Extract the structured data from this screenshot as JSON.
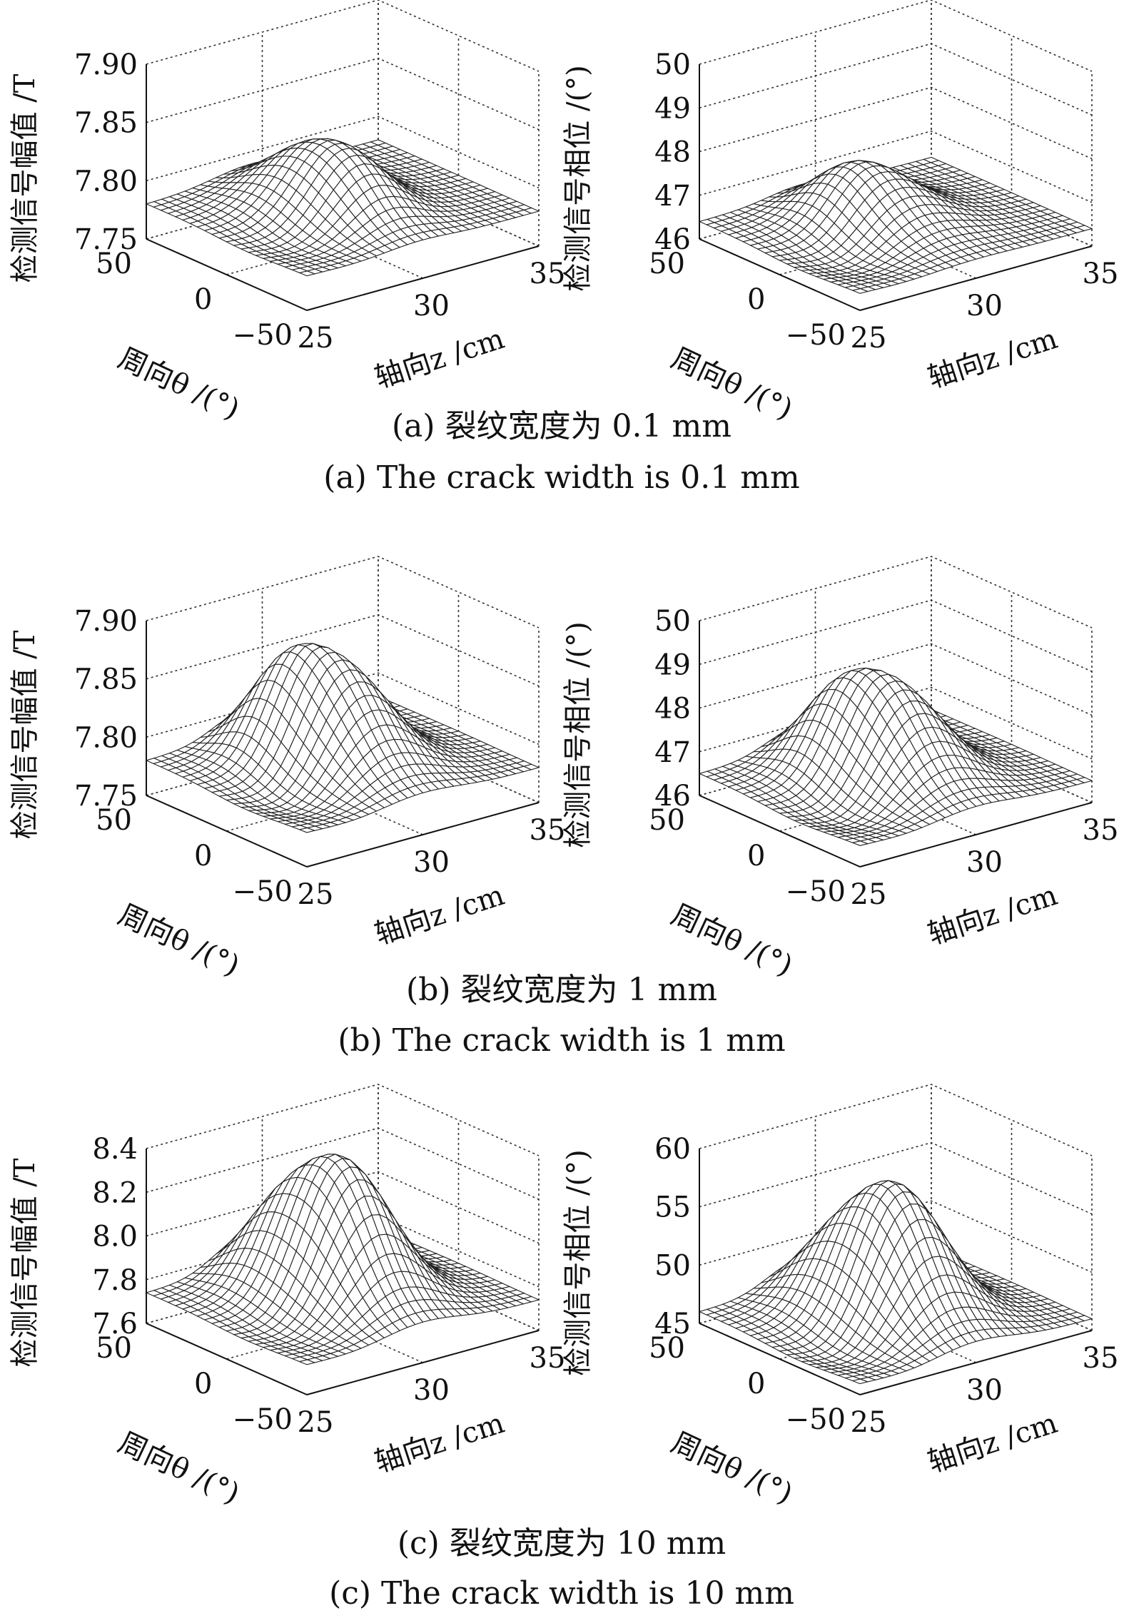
{
  "figure": {
    "rows": [
      {
        "caption_cn": "(a) 裂纹宽度为 0.1 mm",
        "caption_en": "(a) The crack width is 0.1 mm"
      },
      {
        "caption_cn": "(b) 裂纹宽度为 1 mm",
        "caption_en": "(b) The crack width is 1 mm"
      },
      {
        "caption_cn": "(c) 裂纹宽度为 10 mm",
        "caption_en": "(c) The crack width is 10 mm"
      }
    ]
  },
  "chart_data": [
    {
      "type": "surface",
      "row": 0,
      "col": 0,
      "zlabel": "检测信号幅值 /T",
      "xlabel": "周向θ /(°)",
      "ylabel": "轴向z /cm",
      "theta_ticks": [
        "50",
        "0",
        "−50"
      ],
      "z_ticks": [
        "25",
        "30",
        "35"
      ],
      "val_ticks": [
        "7.75",
        "7.80",
        "7.85",
        "7.90"
      ],
      "theta_range": [
        -50,
        50
      ],
      "z_range": [
        25,
        35
      ],
      "val_range": [
        7.75,
        7.9
      ],
      "baseline": 7.78,
      "peaks": [
        {
          "theta": 10,
          "z": 29.5,
          "height": 7.83
        },
        {
          "theta": -15,
          "z": 30,
          "height": 7.8
        }
      ],
      "dip": {
        "theta": -10,
        "z": 27,
        "value": 7.77
      },
      "grid": true
    },
    {
      "type": "surface",
      "row": 0,
      "col": 1,
      "zlabel": "检测信号相位 /(°)",
      "xlabel": "周向θ /(°)",
      "ylabel": "轴向z /cm",
      "theta_ticks": [
        "50",
        "0",
        "−50"
      ],
      "z_ticks": [
        "25",
        "30",
        "35"
      ],
      "val_ticks": [
        "46",
        "47",
        "48",
        "49",
        "50"
      ],
      "theta_range": [
        -50,
        50
      ],
      "z_range": [
        25,
        35
      ],
      "val_range": [
        46,
        50
      ],
      "baseline": 46.4,
      "peaks": [
        {
          "theta": 5,
          "z": 30,
          "height": 47.3
        },
        {
          "theta": 20,
          "z": 29,
          "height": 47.0
        }
      ],
      "dip": {
        "theta": -10,
        "z": 27,
        "value": 46.1
      },
      "grid": true
    },
    {
      "type": "surface",
      "row": 1,
      "col": 0,
      "zlabel": "检测信号幅值 /T",
      "xlabel": "周向θ /(°)",
      "ylabel": "轴向z /cm",
      "theta_ticks": [
        "50",
        "0",
        "−50"
      ],
      "z_ticks": [
        "25",
        "30",
        "35"
      ],
      "val_ticks": [
        "7.75",
        "7.80",
        "7.85",
        "7.90"
      ],
      "theta_range": [
        -50,
        50
      ],
      "z_range": [
        25,
        35
      ],
      "val_range": [
        7.75,
        7.9
      ],
      "baseline": 7.78,
      "peaks": [
        {
          "theta": 0,
          "z": 30,
          "height": 7.86
        },
        {
          "theta": 25,
          "z": 29,
          "height": 7.83
        }
      ],
      "dip": {
        "theta": -10,
        "z": 27,
        "value": 7.765
      },
      "grid": true
    },
    {
      "type": "surface",
      "row": 1,
      "col": 1,
      "zlabel": "检测信号相位 /(°)",
      "xlabel": "周向θ /(°)",
      "ylabel": "轴向z /cm",
      "theta_ticks": [
        "50",
        "0",
        "−50"
      ],
      "z_ticks": [
        "25",
        "30",
        "35"
      ],
      "val_ticks": [
        "46",
        "47",
        "48",
        "49",
        "50"
      ],
      "theta_range": [
        -50,
        50
      ],
      "z_range": [
        25,
        35
      ],
      "val_range": [
        46,
        50
      ],
      "baseline": 46.5,
      "peaks": [
        {
          "theta": 0,
          "z": 30,
          "height": 48.5
        },
        {
          "theta": 25,
          "z": 29,
          "height": 47.6
        }
      ],
      "dip": {
        "theta": -10,
        "z": 27,
        "value": 46.1
      },
      "grid": true
    },
    {
      "type": "surface",
      "row": 2,
      "col": 0,
      "zlabel": "检测信号幅值 /T",
      "xlabel": "周向θ /(°)",
      "ylabel": "轴向z /cm",
      "theta_ticks": [
        "50",
        "0",
        "−50"
      ],
      "z_ticks": [
        "25",
        "30",
        "35"
      ],
      "val_ticks": [
        "7.6",
        "7.8",
        "8.0",
        "8.2",
        "8.4"
      ],
      "theta_range": [
        -50,
        50
      ],
      "z_range": [
        25,
        35
      ],
      "val_range": [
        7.6,
        8.4
      ],
      "baseline": 7.74,
      "peaks": [
        {
          "theta": 0,
          "z": 30,
          "height": 8.35
        },
        {
          "theta": 30,
          "z": 29,
          "height": 7.95
        }
      ],
      "dip": {
        "theta": -10,
        "z": 27,
        "value": 7.68
      },
      "grid": true
    },
    {
      "type": "surface",
      "row": 2,
      "col": 1,
      "zlabel": "检测信号相位 /(°)",
      "xlabel": "周向θ /(°)",
      "ylabel": "轴向z /cm",
      "theta_ticks": [
        "50",
        "0",
        "−50"
      ],
      "z_ticks": [
        "25",
        "30",
        "35"
      ],
      "val_ticks": [
        "45",
        "50",
        "55",
        "60"
      ],
      "theta_range": [
        -50,
        50
      ],
      "z_range": [
        25,
        35
      ],
      "val_range": [
        45,
        60
      ],
      "baseline": 46.0,
      "peaks": [
        {
          "theta": 0,
          "z": 30,
          "height": 57.0
        },
        {
          "theta": 30,
          "z": 29,
          "height": 49.0
        }
      ],
      "dip": {
        "theta": -10,
        "z": 27,
        "value": 44.5
      },
      "grid": true
    }
  ]
}
